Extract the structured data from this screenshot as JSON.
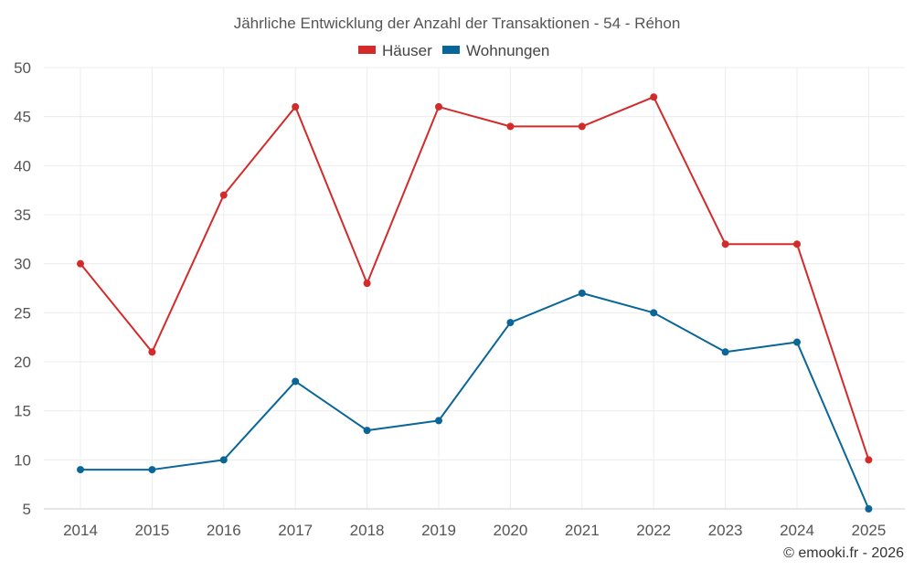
{
  "chart_data": {
    "type": "line",
    "title": "Jährliche Entwicklung der Anzahl der Transaktionen - 54 - Réhon",
    "categories": [
      "2014",
      "2015",
      "2016",
      "2017",
      "2018",
      "2019",
      "2020",
      "2021",
      "2022",
      "2023",
      "2024",
      "2025"
    ],
    "series": [
      {
        "name": "Häuser",
        "color": "#d32a2a",
        "values": [
          30,
          21,
          37,
          46,
          28,
          46,
          44,
          44,
          47,
          32,
          32,
          10
        ]
      },
      {
        "name": "Wohnungen",
        "color": "#0a6699",
        "values": [
          9,
          9,
          10,
          18,
          13,
          14,
          24,
          27,
          25,
          21,
          22,
          5
        ]
      }
    ],
    "ylim": [
      5,
      50
    ],
    "yticks": [
      "5",
      "10",
      "15",
      "20",
      "25",
      "30",
      "35",
      "40",
      "45",
      "50"
    ],
    "legend_position": "top-center",
    "grid": true,
    "xlabel": "",
    "ylabel": ""
  },
  "credit": "© emooki.fr - 2026"
}
